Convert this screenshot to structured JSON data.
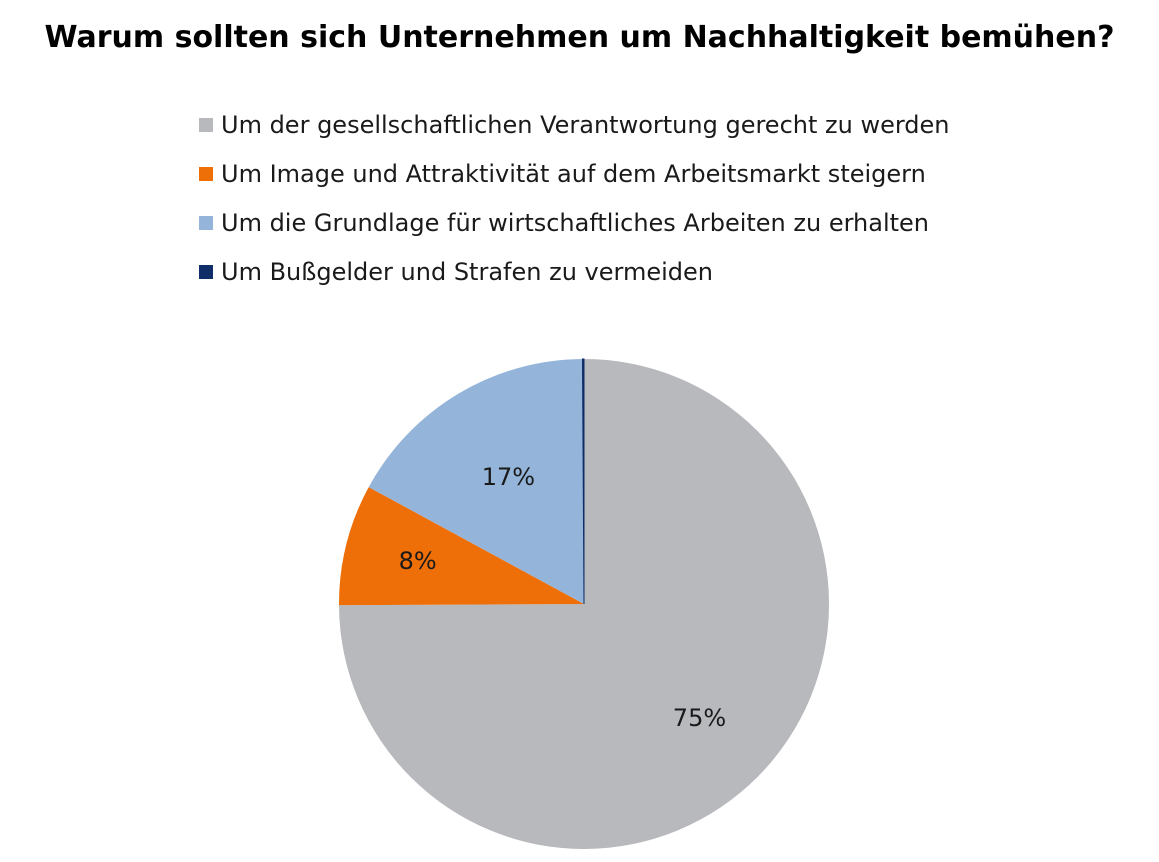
{
  "chart_data": {
    "type": "pie",
    "title": "Warum sollten sich Unternehmen um Nachhaltigkeit bemühen?",
    "legend_position": "top",
    "slices": [
      {
        "label": "Um der gesellschaftlichen Verantwortung gerecht zu werden",
        "value": 75,
        "display": "75%",
        "color": "#b8b9bd"
      },
      {
        "label": "Um Image und Attraktivität auf dem Arbeitsmarkt steigern",
        "value": 8,
        "display": "8%",
        "color": "#ee6f08"
      },
      {
        "label": "Um die Grundlage für wirtschaftliches Arbeiten zu erhalten",
        "value": 17,
        "display": "17%",
        "color": "#94b4da"
      },
      {
        "label": "Um Bußgelder und Strafen zu vermeiden",
        "value": 0.1,
        "display": "",
        "color": "#0f2d66"
      }
    ]
  }
}
